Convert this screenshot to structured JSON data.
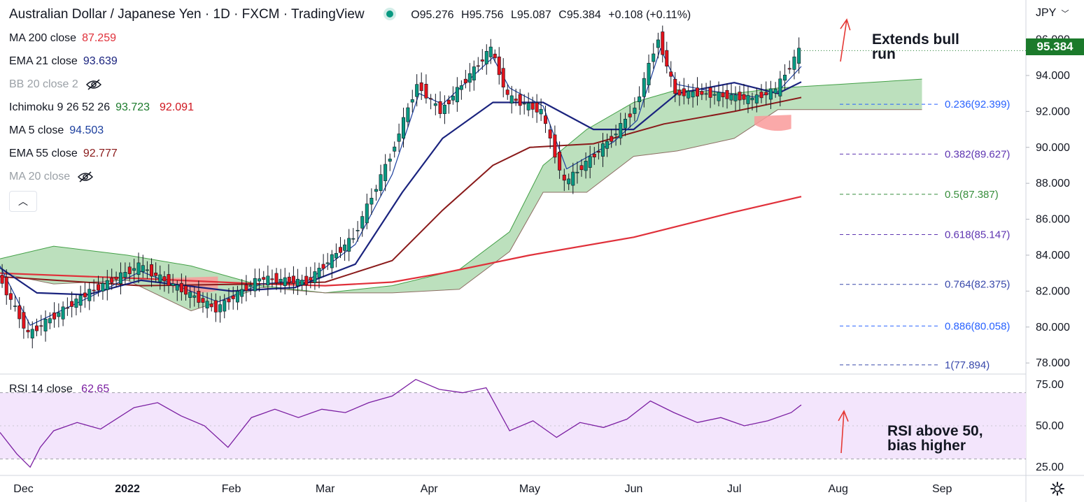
{
  "header": {
    "title": "Australian Dollar / Japanese Yen · 1D · FXCM · TradingView",
    "open": "O95.276",
    "high": "H95.756",
    "low": "L95.087",
    "close": "C95.384",
    "change": "+0.108 (+0.11%)"
  },
  "legend": [
    {
      "label": "MA 200 close",
      "value": "87.259",
      "color": "#e0303a",
      "hidden": false
    },
    {
      "label": "EMA 21 close",
      "value": "93.639",
      "color": "#1a237e",
      "hidden": false
    },
    {
      "label": "BB 20 close 2",
      "value": "",
      "color": "#9aa0a6",
      "hidden": true
    },
    {
      "label": "Ichimoku 9 26 52 26",
      "value": "93.723",
      "value2": "92.091",
      "color": "#1b7a2b",
      "color2": "#d0161f",
      "hidden": false
    },
    {
      "label": "MA 5 close",
      "value": "94.503",
      "color": "#1c3f9e",
      "hidden": false
    },
    {
      "label": "EMA 55 close",
      "value": "92.777",
      "color": "#8a1a1a",
      "hidden": false
    },
    {
      "label": "MA 20 close",
      "value": "",
      "color": "#9aa0a6",
      "hidden": true
    }
  ],
  "currency": "JPY",
  "last_price": "95.384",
  "rsi_label": "RSI 14 close",
  "rsi_value": "62.65",
  "annotations": {
    "bull": [
      "Extends bull",
      "run"
    ],
    "rsi": [
      "RSI above 50,",
      "bias higher"
    ]
  },
  "colors": {
    "up": "#089981",
    "down": "#e3121b",
    "cloud_green": "#a5d6a7",
    "cloud_red": "#f99a9a",
    "rsi_band": "#f3e5fc",
    "rsi_line": "#7b1fa2",
    "annotation_arrow": "#e53935"
  },
  "chart_data": [
    {
      "type": "candlestick",
      "title": "Australian Dollar / Japanese Yen · 1D · FXCM · TradingView",
      "ylim": [
        77.5,
        96.8
      ],
      "y_ticks": [
        "96.000",
        "94.000",
        "92.000",
        "90.000",
        "88.000",
        "86.000",
        "84.000",
        "82.000",
        "80.000",
        "78.000"
      ],
      "x_ticks": [
        "Dec",
        "2022",
        "Feb",
        "Mar",
        "Apr",
        "May",
        "Jun",
        "Jul",
        "Aug",
        "Sep"
      ],
      "x_tick_values": [
        "2021-12-01",
        "2022-01-01",
        "2022-02-01",
        "2022-03-01",
        "2022-04-01",
        "2022-05-01",
        "2022-06-01",
        "2022-07-01",
        "2022-08-01",
        "2022-09-01"
      ],
      "close_path_dates": [
        "2021-11-24",
        "2021-12-03",
        "2021-12-20",
        "2022-01-05",
        "2022-01-28",
        "2022-02-10",
        "2022-02-24",
        "2022-03-10",
        "2022-03-21",
        "2022-03-29",
        "2022-04-05",
        "2022-04-20",
        "2022-04-25",
        "2022-05-05",
        "2022-05-12",
        "2022-05-26",
        "2022-06-02",
        "2022-06-09",
        "2022-06-14",
        "2022-06-22",
        "2022-07-07",
        "2022-07-14",
        "2022-07-21"
      ],
      "close_path": [
        82.9,
        79.6,
        81.8,
        83.4,
        81.0,
        82.7,
        82.5,
        85.0,
        89.5,
        93.5,
        92.0,
        95.5,
        92.8,
        92.0,
        88.0,
        90.5,
        92.2,
        96.1,
        93.0,
        93.0,
        92.7,
        93.2,
        95.384
      ],
      "close_last": 95.384,
      "series": [
        {
          "name": "MA 200 close",
          "last": 87.259,
          "dates": [
            "2021-11-24",
            "2022-01-05",
            "2022-02-10",
            "2022-03-01",
            "2022-03-21",
            "2022-04-05",
            "2022-05-01",
            "2022-06-01",
            "2022-07-01",
            "2022-07-21"
          ],
          "values": [
            83.0,
            82.7,
            82.4,
            82.3,
            82.5,
            83.0,
            84.0,
            85.0,
            86.4,
            87.259
          ]
        },
        {
          "name": "EMA 55 close",
          "last": 92.777,
          "dates": [
            "2021-11-24",
            "2022-01-05",
            "2022-02-10",
            "2022-03-01",
            "2022-03-21",
            "2022-04-05",
            "2022-04-20",
            "2022-05-01",
            "2022-05-20",
            "2022-06-10",
            "2022-07-01",
            "2022-07-21"
          ],
          "values": [
            82.8,
            82.3,
            82.4,
            82.5,
            83.7,
            86.5,
            89.0,
            90.0,
            90.2,
            91.3,
            92.0,
            92.777
          ]
        },
        {
          "name": "EMA 21 close",
          "last": 93.639,
          "dates": [
            "2021-11-24",
            "2021-12-05",
            "2021-12-20",
            "2022-01-05",
            "2022-02-01",
            "2022-02-20",
            "2022-03-10",
            "2022-03-24",
            "2022-04-05",
            "2022-04-20",
            "2022-05-05",
            "2022-05-20",
            "2022-06-01",
            "2022-06-14",
            "2022-07-01",
            "2022-07-14",
            "2022-07-21"
          ],
          "values": [
            83.3,
            81.9,
            81.8,
            82.6,
            82.0,
            82.2,
            83.5,
            87.5,
            90.5,
            92.5,
            92.5,
            91.0,
            91.0,
            93.0,
            93.6,
            93.0,
            93.639
          ]
        },
        {
          "name": "MA 5 close",
          "last": 94.503,
          "dates": [
            "2021-11-24",
            "2021-12-03",
            "2021-12-20",
            "2022-01-05",
            "2022-01-28",
            "2022-02-10",
            "2022-02-24",
            "2022-03-10",
            "2022-03-21",
            "2022-03-29",
            "2022-04-05",
            "2022-04-20",
            "2022-04-25",
            "2022-05-05",
            "2022-05-12",
            "2022-05-26",
            "2022-06-02",
            "2022-06-09",
            "2022-06-14",
            "2022-06-22",
            "2022-07-07",
            "2022-07-14",
            "2022-07-21"
          ],
          "values": [
            83.4,
            80.1,
            81.6,
            83.1,
            81.4,
            82.4,
            82.6,
            84.6,
            88.5,
            93.0,
            92.4,
            95.0,
            93.3,
            92.3,
            88.8,
            90.3,
            91.5,
            95.5,
            93.5,
            93.2,
            92.8,
            93.1,
            94.503
          ]
        }
      ],
      "ichimoku_cloud": {
        "span_a_dates": [
          "2021-11-24",
          "2021-12-10",
          "2022-01-01",
          "2022-01-20",
          "2022-02-10",
          "2022-03-01",
          "2022-03-21",
          "2022-04-10",
          "2022-04-25",
          "2022-05-05",
          "2022-05-18",
          "2022-06-01",
          "2022-06-14",
          "2022-07-01",
          "2022-07-14",
          "2022-08-01",
          "2022-08-26"
        ],
        "span_a": [
          83.8,
          84.5,
          84.0,
          83.4,
          82.3,
          81.9,
          82.3,
          83.2,
          85.3,
          89.0,
          91.0,
          92.5,
          93.2,
          93.0,
          93.3,
          93.5,
          93.8
        ],
        "span_b_dates": [
          "2021-11-24",
          "2021-12-10",
          "2022-01-01",
          "2022-01-20",
          "2022-02-10",
          "2022-03-01",
          "2022-03-21",
          "2022-04-10",
          "2022-04-25",
          "2022-05-05",
          "2022-05-18",
          "2022-06-01",
          "2022-06-14",
          "2022-07-01",
          "2022-07-14",
          "2022-08-01",
          "2022-08-26"
        ],
        "span_b": [
          83.0,
          82.4,
          82.6,
          80.9,
          82.2,
          81.9,
          81.9,
          82.1,
          84.2,
          87.5,
          87.5,
          89.5,
          89.8,
          90.5,
          92.1,
          92.1,
          92.1
        ],
        "red_twist": {
          "from_date": "2022-01-14",
          "to_date": "2022-01-28",
          "value": 82.5
        },
        "red_twist_late": {
          "from_date": "2022-07-07",
          "to_date": "2022-07-18",
          "value": 91.5
        }
      },
      "fibonacci": [
        {
          "label": "0.236(92.399)",
          "ratio": 0.236,
          "value": 92.399,
          "color": "#2962ff"
        },
        {
          "label": "0.382(89.627)",
          "ratio": 0.382,
          "value": 89.627,
          "color": "#5e35b1"
        },
        {
          "label": "0.5(87.387)",
          "ratio": 0.5,
          "value": 87.387,
          "color": "#388e3c"
        },
        {
          "label": "0.618(85.147)",
          "ratio": 0.618,
          "value": 85.147,
          "color": "#5e35b1"
        },
        {
          "label": "0.764(82.375)",
          "ratio": 0.764,
          "value": 82.375,
          "color": "#3949ab"
        },
        {
          "label": "0.886(80.058)",
          "ratio": 0.886,
          "value": 80.058,
          "color": "#2962ff"
        },
        {
          "label": "1(77.894)",
          "ratio": 1,
          "value": 77.894,
          "color": "#3949ab"
        }
      ]
    },
    {
      "type": "line",
      "title": "RSI 14 close",
      "ylim": [
        20,
        80
      ],
      "y_ticks": [
        "75.00",
        "50.00",
        "25.00"
      ],
      "band": [
        30,
        70
      ],
      "dates": [
        "2021-11-24",
        "2021-11-29",
        "2021-12-03",
        "2021-12-06",
        "2021-12-10",
        "2021-12-17",
        "2021-12-24",
        "2022-01-03",
        "2022-01-10",
        "2022-01-17",
        "2022-01-24",
        "2022-01-31",
        "2022-02-07",
        "2022-02-14",
        "2022-02-21",
        "2022-02-28",
        "2022-03-07",
        "2022-03-14",
        "2022-03-21",
        "2022-03-28",
        "2022-04-04",
        "2022-04-11",
        "2022-04-18",
        "2022-04-25",
        "2022-05-02",
        "2022-05-09",
        "2022-05-16",
        "2022-05-23",
        "2022-05-30",
        "2022-06-06",
        "2022-06-13",
        "2022-06-20",
        "2022-06-27",
        "2022-07-04",
        "2022-07-11",
        "2022-07-18",
        "2022-07-21"
      ],
      "values": [
        46,
        33,
        25,
        37,
        47,
        52,
        48,
        61,
        64,
        56,
        50,
        37,
        55,
        60,
        55,
        60,
        58,
        64,
        68,
        78,
        72,
        70,
        73,
        47,
        53,
        43,
        52,
        49,
        54,
        65,
        58,
        52,
        55,
        50,
        53,
        58,
        62.65
      ]
    }
  ]
}
